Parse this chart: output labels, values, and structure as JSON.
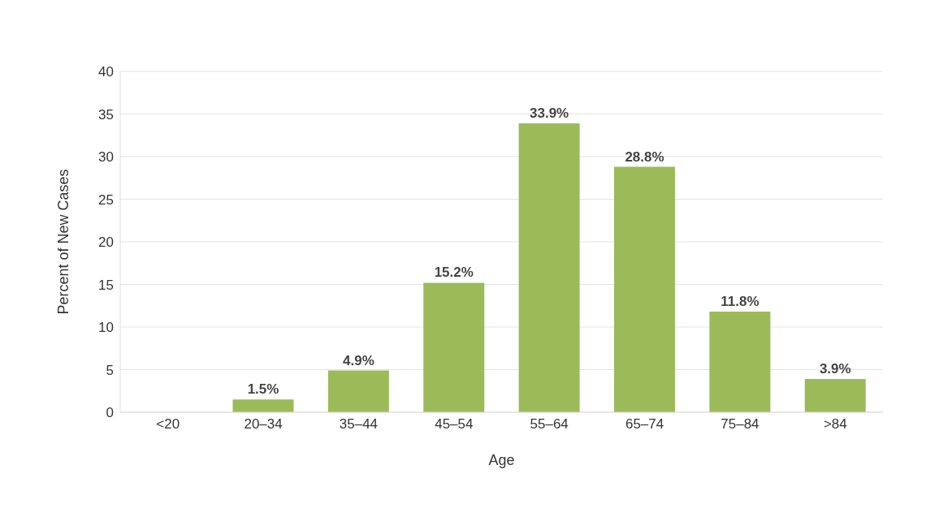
{
  "chart_data": {
    "type": "bar",
    "xlabel": "Age",
    "ylabel": "Percent of New Cases",
    "categories": [
      "<20",
      "20–34",
      "35–44",
      "45–54",
      "55–64",
      "65–74",
      "75–84",
      ">84"
    ],
    "values": [
      0,
      1.5,
      4.9,
      15.2,
      33.9,
      28.8,
      11.8,
      3.9
    ],
    "value_labels": [
      null,
      "1.5%",
      "4.9%",
      "15.2%",
      "33.9%",
      "28.8%",
      "11.8%",
      "3.9%"
    ],
    "color": "#9bbb59",
    "ylim": [
      0,
      40
    ],
    "yticks": [
      0,
      5,
      10,
      15,
      20,
      25,
      30,
      35,
      40
    ],
    "grid": "y"
  }
}
